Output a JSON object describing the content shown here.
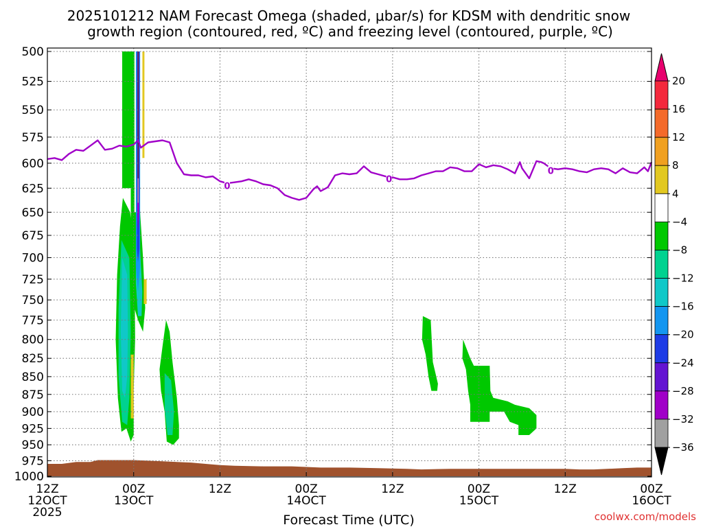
{
  "chart_data": {
    "type": "heatmap",
    "title": "2025101212 NAM Forecast Omega (shaded, μbar/s) for KDSM with dendritic snow",
    "subtitle": "growth region (contoured, red, ºC) and freezing level (contoured, purple, ºC)",
    "xlabel": "Forecast Time (UTC)",
    "ylabel": "",
    "credit": "coolwx.com/models",
    "y_axis": {
      "unit": "hPa",
      "ticks": [
        500,
        525,
        550,
        575,
        600,
        625,
        650,
        675,
        700,
        725,
        750,
        775,
        800,
        825,
        850,
        875,
        900,
        925,
        950,
        975,
        1000
      ],
      "range": [
        1000,
        500
      ],
      "log_scale": true
    },
    "x_axis": {
      "range_hours": [
        0,
        84
      ],
      "ticks": [
        {
          "hour": 0,
          "line1": "12Z",
          "line2": "12OCT",
          "line3": "2025"
        },
        {
          "hour": 12,
          "line1": "00Z",
          "line2": "13OCT",
          "line3": ""
        },
        {
          "hour": 24,
          "line1": "12Z",
          "line2": "",
          "line3": ""
        },
        {
          "hour": 36,
          "line1": "00Z",
          "line2": "14OCT",
          "line3": ""
        },
        {
          "hour": 48,
          "line1": "12Z",
          "line2": "",
          "line3": ""
        },
        {
          "hour": 60,
          "line1": "00Z",
          "line2": "15OCT",
          "line3": ""
        },
        {
          "hour": 72,
          "line1": "12Z",
          "line2": "",
          "line3": ""
        },
        {
          "hour": 84,
          "line1": "00Z",
          "line2": "16OCT",
          "line3": ""
        }
      ]
    },
    "grid": true,
    "colorbar": {
      "placement": "right",
      "labels": [
        "20",
        "16",
        "12",
        "8",
        "4",
        "−4",
        "−8",
        "−12",
        "−16",
        "−20",
        "−24",
        "−28",
        "−32",
        "−36"
      ],
      "bands": [
        {
          "range": "above 20",
          "color": "#e8006e"
        },
        {
          "range": "16 to 20",
          "color": "#f4283c"
        },
        {
          "range": "12 to 16",
          "color": "#f46a2a"
        },
        {
          "range": "8 to 12",
          "color": "#f0a020"
        },
        {
          "range": "4 to 8",
          "color": "#e2c820"
        },
        {
          "range": "-4 to 4",
          "color": "#ffffff"
        },
        {
          "range": "-8 to -4",
          "color": "#00c800"
        },
        {
          "range": "-12 to -8",
          "color": "#00d290"
        },
        {
          "range": "-16 to -12",
          "color": "#10c8c8"
        },
        {
          "range": "-20 to -16",
          "color": "#1496f0"
        },
        {
          "range": "-24 to -20",
          "color": "#1e3ce6"
        },
        {
          "range": "-28 to -24",
          "color": "#6414d2"
        },
        {
          "range": "-32 to -28",
          "color": "#a000c8"
        },
        {
          "range": "-36 to -32",
          "color": "#a0a0a0"
        },
        {
          "range": "below -36",
          "color": "#000000"
        }
      ]
    },
    "freezing_level": {
      "color": "#a000c8",
      "contour_label": "0",
      "label_positions": [
        {
          "hour": 25,
          "p": 623
        },
        {
          "hour": 47.5,
          "p": 616
        },
        {
          "hour": 70,
          "p": 608
        }
      ],
      "points": [
        [
          0,
          596
        ],
        [
          1,
          595
        ],
        [
          2,
          597
        ],
        [
          3,
          591
        ],
        [
          4,
          587
        ],
        [
          5,
          588
        ],
        [
          6,
          583
        ],
        [
          7,
          578
        ],
        [
          8,
          587
        ],
        [
          9,
          586
        ],
        [
          10,
          583
        ],
        [
          11,
          584
        ],
        [
          12,
          582
        ],
        [
          12.6,
          578
        ],
        [
          13,
          585
        ],
        [
          14,
          580
        ],
        [
          15,
          579
        ],
        [
          16,
          578
        ],
        [
          17,
          580
        ],
        [
          18,
          600
        ],
        [
          19,
          611
        ],
        [
          20,
          612
        ],
        [
          21,
          612
        ],
        [
          22,
          614
        ],
        [
          23,
          613
        ],
        [
          24,
          618
        ],
        [
          25,
          620
        ],
        [
          26,
          619
        ],
        [
          27,
          618
        ],
        [
          28,
          616
        ],
        [
          29,
          618
        ],
        [
          30,
          621
        ],
        [
          31,
          622
        ],
        [
          32,
          625
        ],
        [
          33,
          632
        ],
        [
          34,
          635
        ],
        [
          35,
          637
        ],
        [
          36,
          635
        ],
        [
          37,
          626
        ],
        [
          37.5,
          623
        ],
        [
          38,
          628
        ],
        [
          39,
          624
        ],
        [
          40,
          612
        ],
        [
          41,
          610
        ],
        [
          42,
          611
        ],
        [
          43,
          610
        ],
        [
          44,
          603
        ],
        [
          45,
          609
        ],
        [
          46,
          611
        ],
        [
          47,
          613
        ],
        [
          48,
          614
        ],
        [
          49,
          616
        ],
        [
          50,
          616
        ],
        [
          51,
          615
        ],
        [
          52,
          612
        ],
        [
          53,
          610
        ],
        [
          54,
          608
        ],
        [
          55,
          608
        ],
        [
          56,
          604
        ],
        [
          57,
          605
        ],
        [
          58,
          608
        ],
        [
          59,
          608
        ],
        [
          60,
          601
        ],
        [
          61,
          604
        ],
        [
          62,
          602
        ],
        [
          63,
          603
        ],
        [
          64,
          606
        ],
        [
          65,
          610
        ],
        [
          65.7,
          599
        ],
        [
          66,
          605
        ],
        [
          67,
          615
        ],
        [
          68,
          598
        ],
        [
          68.7,
          599
        ],
        [
          69,
          600
        ],
        [
          70,
          605
        ],
        [
          71,
          606
        ],
        [
          72,
          605
        ],
        [
          73,
          606
        ],
        [
          74,
          608
        ],
        [
          75,
          609
        ],
        [
          76,
          606
        ],
        [
          77,
          605
        ],
        [
          78,
          606
        ],
        [
          79,
          610
        ],
        [
          80,
          605
        ],
        [
          81,
          609
        ],
        [
          82,
          610
        ],
        [
          83,
          604
        ],
        [
          83.5,
          608
        ],
        [
          84,
          599
        ]
      ]
    },
    "ground": {
      "color": "#a0522d",
      "surface_points": [
        [
          0,
          980
        ],
        [
          2,
          980
        ],
        [
          4,
          977
        ],
        [
          6,
          977
        ],
        [
          7,
          974
        ],
        [
          12,
          974
        ],
        [
          14,
          975
        ],
        [
          16,
          976
        ],
        [
          18,
          977
        ],
        [
          20,
          978
        ],
        [
          22,
          980
        ],
        [
          24,
          982
        ],
        [
          26,
          983
        ],
        [
          30,
          984
        ],
        [
          34,
          984
        ],
        [
          38,
          986
        ],
        [
          42,
          986
        ],
        [
          46,
          987
        ],
        [
          50,
          988
        ],
        [
          52,
          989
        ],
        [
          56,
          988
        ],
        [
          60,
          988
        ],
        [
          64,
          988
        ],
        [
          68,
          988
        ],
        [
          72,
          988
        ],
        [
          74,
          989
        ],
        [
          76,
          989
        ],
        [
          80,
          987
        ],
        [
          82,
          986
        ],
        [
          84,
          986
        ]
      ]
    },
    "omega_regions": [
      {
        "name": "green column 12.5Z",
        "color": "#00c800",
        "points": [
          [
            10.4,
            500
          ],
          [
            11.6,
            500
          ],
          [
            11.6,
            625
          ],
          [
            10.4,
            625
          ]
        ]
      },
      {
        "name": "green tower",
        "color": "#00c800",
        "points": [
          [
            11.6,
            500
          ],
          [
            12.1,
            500
          ],
          [
            12.1,
            650
          ],
          [
            12.9,
            650
          ],
          [
            13.3,
            700
          ],
          [
            13.6,
            760
          ],
          [
            13.3,
            790
          ],
          [
            12.6,
            775
          ],
          [
            12.1,
            760
          ],
          [
            11.6,
            700
          ]
        ]
      },
      {
        "name": "teal tower",
        "color": "#10c8c8",
        "points": [
          [
            12.3,
            690
          ],
          [
            12.9,
            690
          ],
          [
            13.2,
            740
          ],
          [
            13.1,
            770
          ],
          [
            12.6,
            770
          ],
          [
            12.3,
            730
          ]
        ]
      },
      {
        "name": "blue core",
        "color": "#1496f0",
        "points": [
          [
            12.3,
            500
          ],
          [
            12.9,
            500
          ],
          [
            12.9,
            710
          ],
          [
            12.6,
            740
          ],
          [
            12.3,
            710
          ]
        ]
      },
      {
        "name": "navy core",
        "color": "#1e3ce6",
        "points": [
          [
            12.45,
            500
          ],
          [
            12.8,
            500
          ],
          [
            12.8,
            690
          ],
          [
            12.6,
            705
          ],
          [
            12.45,
            690
          ]
        ]
      },
      {
        "name": "purple core",
        "color": "#a000c8",
        "points": [
          [
            12.5,
            500
          ],
          [
            12.75,
            500
          ],
          [
            12.75,
            650
          ],
          [
            12.6,
            670
          ],
          [
            12.5,
            650
          ]
        ]
      },
      {
        "name": "gray core",
        "color": "#a0a0a0",
        "points": [
          [
            12.55,
            500
          ],
          [
            12.7,
            500
          ],
          [
            12.7,
            640
          ],
          [
            12.55,
            640
          ]
        ]
      },
      {
        "name": "black core",
        "color": "#000000",
        "points": [
          [
            12.57,
            500
          ],
          [
            12.66,
            500
          ],
          [
            12.66,
            615
          ],
          [
            12.57,
            615
          ]
        ]
      },
      {
        "name": "yellow sliver top",
        "color": "#e2c820",
        "points": [
          [
            13.2,
            500
          ],
          [
            13.5,
            500
          ],
          [
            13.5,
            595
          ],
          [
            13.2,
            595
          ]
        ]
      },
      {
        "name": "white gap",
        "color": "#ffffff",
        "points": [
          [
            12.95,
            500
          ],
          [
            13.2,
            500
          ],
          [
            13.2,
            595
          ],
          [
            12.95,
            595
          ]
        ]
      },
      {
        "name": "green lobe low",
        "color": "#00c800",
        "points": [
          [
            10.5,
            635
          ],
          [
            11.5,
            650
          ],
          [
            12.1,
            690
          ],
          [
            12.2,
            800
          ],
          [
            12.0,
            870
          ],
          [
            12.0,
            935
          ],
          [
            11.6,
            945
          ],
          [
            11.0,
            925
          ],
          [
            10.3,
            930
          ],
          [
            9.8,
            880
          ],
          [
            9.5,
            800
          ],
          [
            9.7,
            720
          ],
          [
            10.1,
            665
          ]
        ]
      },
      {
        "name": "aqua lobe",
        "color": "#00d290",
        "points": [
          [
            10.3,
            680
          ],
          [
            11.4,
            700
          ],
          [
            11.6,
            790
          ],
          [
            11.4,
            880
          ],
          [
            11.1,
            920
          ],
          [
            10.4,
            915
          ],
          [
            9.9,
            850
          ],
          [
            9.9,
            760
          ]
        ]
      },
      {
        "name": "teal lobe",
        "color": "#10c8c8",
        "points": [
          [
            10.4,
            700
          ],
          [
            11.1,
            720
          ],
          [
            11.2,
            790
          ],
          [
            11.1,
            850
          ],
          [
            10.8,
            880
          ],
          [
            10.4,
            870
          ],
          [
            10.2,
            790
          ]
        ]
      },
      {
        "name": "yellow sliver mid",
        "color": "#e2c820",
        "points": [
          [
            13.4,
            725
          ],
          [
            13.8,
            725
          ],
          [
            13.8,
            755
          ],
          [
            13.4,
            755
          ]
        ]
      },
      {
        "name": "yellow sliver low",
        "color": "#e2c820",
        "points": [
          [
            11.6,
            820
          ],
          [
            12.0,
            820
          ],
          [
            12.0,
            910
          ],
          [
            11.6,
            910
          ]
        ]
      },
      {
        "name": "green lobe 2",
        "color": "#00c800",
        "points": [
          [
            16.5,
            775
          ],
          [
            17.0,
            790
          ],
          [
            17.4,
            830
          ],
          [
            18.0,
            880
          ],
          [
            18.3,
            920
          ],
          [
            18.3,
            940
          ],
          [
            17.5,
            950
          ],
          [
            16.6,
            945
          ],
          [
            16.3,
            900
          ],
          [
            15.8,
            870
          ],
          [
            15.6,
            840
          ],
          [
            16.0,
            810
          ]
        ]
      },
      {
        "name": "aqua lobe 2",
        "color": "#00d290",
        "points": [
          [
            16.3,
            845
          ],
          [
            17.2,
            855
          ],
          [
            17.6,
            900
          ],
          [
            17.4,
            935
          ],
          [
            16.7,
            935
          ],
          [
            16.3,
            895
          ]
        ]
      },
      {
        "name": "green blob A",
        "color": "#00c800",
        "points": [
          [
            52.2,
            770
          ],
          [
            53.3,
            775
          ],
          [
            53.6,
            830
          ],
          [
            54.3,
            860
          ],
          [
            54.2,
            870
          ],
          [
            53.4,
            870
          ],
          [
            53.0,
            850
          ],
          [
            52.6,
            820
          ],
          [
            52.1,
            800
          ]
        ]
      },
      {
        "name": "green blob B",
        "color": "#00c800",
        "points": [
          [
            57.8,
            800
          ],
          [
            58.8,
            825
          ],
          [
            59.3,
            835
          ],
          [
            61.5,
            835
          ],
          [
            61.6,
            870
          ],
          [
            62.0,
            880
          ],
          [
            64.0,
            885
          ],
          [
            65.0,
            890
          ],
          [
            67.0,
            895
          ],
          [
            68.0,
            905
          ],
          [
            68.0,
            925
          ],
          [
            67.0,
            935
          ],
          [
            65.5,
            935
          ],
          [
            65.5,
            920
          ],
          [
            64.3,
            915
          ],
          [
            63.5,
            900
          ],
          [
            61.5,
            900
          ],
          [
            61.5,
            915
          ],
          [
            58.8,
            915
          ],
          [
            58.8,
            890
          ],
          [
            58.5,
            870
          ],
          [
            58.2,
            840
          ],
          [
            57.7,
            825
          ]
        ]
      }
    ]
  }
}
